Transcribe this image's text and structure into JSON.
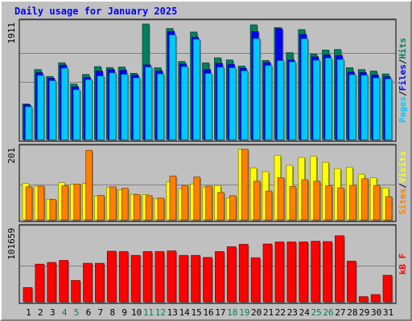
{
  "chart_data": [
    {
      "type": "bar",
      "panel": "hits-files-pages",
      "title": "Daily usage for January 2025",
      "ymax_label": "1911",
      "ylim": [
        0,
        1911
      ],
      "categories": [
        "1",
        "2",
        "3",
        "4",
        "5",
        "6",
        "7",
        "8",
        "9",
        "10",
        "11",
        "12",
        "13",
        "14",
        "15",
        "16",
        "17",
        "18",
        "19",
        "20",
        "21",
        "22",
        "23",
        "24",
        "25",
        "26",
        "27",
        "28",
        "29",
        "30",
        "31"
      ],
      "series": [
        {
          "name": "Hits",
          "color": "#00805c",
          "values": [
            589,
            1158,
            1044,
            1271,
            919,
            1078,
            1207,
            1192,
            1200,
            1097,
            1911,
            1188,
            1837,
            1292,
            1779,
            1270,
            1352,
            1317,
            1216,
            1898,
            1309,
            1853,
            1438,
            1819,
            1414,
            1481,
            1489,
            1189,
            1158,
            1133,
            1086
          ]
        },
        {
          "name": "Files",
          "color": "#0000ff",
          "values": [
            576,
            1107,
            1014,
            1232,
            872,
            1025,
            1134,
            1159,
            1147,
            1066,
            1235,
            1134,
            1787,
            1249,
            1691,
            1158,
            1261,
            1243,
            1178,
            1786,
            1274,
            1834,
            1319,
            1739,
            1368,
            1400,
            1388,
            1116,
            1108,
            1067,
            1038
          ]
        },
        {
          "name": "Pages",
          "color": "#00c8ff",
          "values": [
            544,
            1063,
            975,
            1182,
            826,
            993,
            1052,
            1103,
            1078,
            1020,
            1200,
            1086,
            1731,
            1207,
            1659,
            1094,
            1198,
            1188,
            1137,
            1669,
            1227,
            1306,
            1286,
            1668,
            1313,
            1349,
            1325,
            1074,
            1064,
            1020,
            1005
          ]
        }
      ],
      "legend": [
        "Pages",
        "/",
        "Files",
        "/",
        "Hits"
      ]
    },
    {
      "type": "bar",
      "panel": "visits-sites",
      "ymax_label": "201",
      "ylim": [
        0,
        201
      ],
      "categories": [
        "1",
        "2",
        "3",
        "4",
        "5",
        "6",
        "7",
        "8",
        "9",
        "10",
        "11",
        "12",
        "13",
        "14",
        "15",
        "16",
        "17",
        "18",
        "19",
        "20",
        "21",
        "22",
        "23",
        "24",
        "25",
        "26",
        "27",
        "28",
        "29",
        "30",
        "31"
      ],
      "series": [
        {
          "name": "Visits",
          "color": "#ffff00",
          "values": [
            104,
            96,
            59,
            106,
            101,
            104,
            68,
            93,
            85,
            73,
            72,
            60,
            109,
            89,
            102,
            93,
            98,
            62,
            201,
            148,
            137,
            184,
            155,
            178,
            181,
            164,
            146,
            150,
            130,
            120,
            91
          ]
        },
        {
          "name": "Sites",
          "color": "#ff8000",
          "values": [
            94,
            96,
            58,
            97,
            102,
            198,
            70,
            94,
            90,
            72,
            69,
            62,
            125,
            98,
            122,
            96,
            78,
            69,
            201,
            110,
            82,
            120,
            95,
            114,
            110,
            97,
            91,
            98,
            117,
            98,
            66
          ]
        }
      ],
      "legend": [
        "Sites",
        "/",
        "Visits"
      ]
    },
    {
      "type": "bar",
      "panel": "kbytes",
      "ymax_label": "101659",
      "ylim": [
        0,
        101659
      ],
      "categories": [
        "1",
        "2",
        "3",
        "4",
        "5",
        "6",
        "7",
        "8",
        "9",
        "10",
        "11",
        "12",
        "13",
        "14",
        "15",
        "16",
        "17",
        "18",
        "19",
        "20",
        "21",
        "22",
        "23",
        "24",
        "25",
        "26",
        "27",
        "28",
        "29",
        "30",
        "31"
      ],
      "series": [
        {
          "name": "kB F",
          "color": "#ff0000",
          "values": [
            19954,
            52855,
            55271,
            58142,
            29905,
            54073,
            54073,
            71054,
            70570,
            65245,
            70570,
            70570,
            71538,
            65245,
            65245,
            62334,
            70570,
            77351,
            80738,
            61883,
            81222,
            84127,
            84127,
            84127,
            85095,
            84611,
            92836,
            57172,
            7137,
            10085,
            37198
          ]
        }
      ],
      "legend": [
        "kB F"
      ]
    }
  ],
  "x_day_colors": [
    "#000000",
    "#000000",
    "#000000",
    "#00805c",
    "#00805c",
    "#000000",
    "#000000",
    "#000000",
    "#000000",
    "#000000",
    "#00805c",
    "#00805c",
    "#000000",
    "#000000",
    "#000000",
    "#000000",
    "#000000",
    "#00805c",
    "#00805c",
    "#000000",
    "#000000",
    "#000000",
    "#000000",
    "#000000",
    "#00805c",
    "#00805c",
    "#000000",
    "#000000",
    "#000000",
    "#000000",
    "#000000"
  ]
}
